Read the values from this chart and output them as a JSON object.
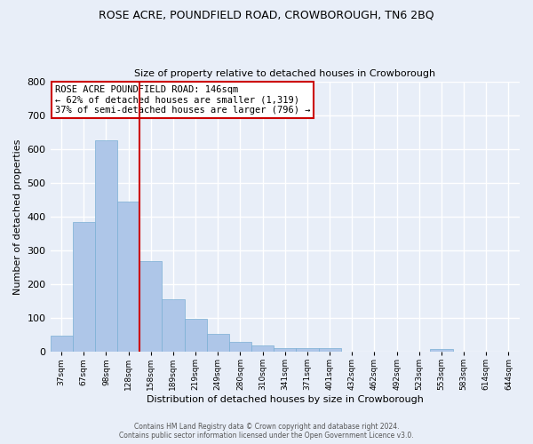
{
  "title1": "ROSE ACRE, POUNDFIELD ROAD, CROWBOROUGH, TN6 2BQ",
  "title2": "Size of property relative to detached houses in Crowborough",
  "xlabel": "Distribution of detached houses by size in Crowborough",
  "ylabel": "Number of detached properties",
  "bin_labels": [
    "37sqm",
    "67sqm",
    "98sqm",
    "128sqm",
    "158sqm",
    "189sqm",
    "219sqm",
    "249sqm",
    "280sqm",
    "310sqm",
    "341sqm",
    "371sqm",
    "401sqm",
    "432sqm",
    "462sqm",
    "492sqm",
    "523sqm",
    "553sqm",
    "583sqm",
    "614sqm",
    "644sqm"
  ],
  "bar_values": [
    48,
    385,
    625,
    445,
    268,
    155,
    98,
    52,
    30,
    18,
    10,
    10,
    12,
    0,
    0,
    0,
    0,
    8,
    0,
    0,
    0
  ],
  "bar_color": "#aec6e8",
  "bar_edge_color": "#7aafd4",
  "background_color": "#e8eef8",
  "grid_color": "#ffffff",
  "ylim": [
    0,
    800
  ],
  "yticks": [
    0,
    100,
    200,
    300,
    400,
    500,
    600,
    700,
    800
  ],
  "property_sqm": 146,
  "property_bin_index": 3,
  "red_line_color": "#cc0000",
  "annotation_title": "ROSE ACRE POUNDFIELD ROAD: 146sqm",
  "annotation_line1": "← 62% of detached houses are smaller (1,319)",
  "annotation_line2": "37% of semi-detached houses are larger (796) →",
  "annotation_box_color": "#ffffff",
  "annotation_border_color": "#cc0000",
  "footer_line1": "Contains HM Land Registry data © Crown copyright and database right 2024.",
  "footer_line2": "Contains public sector information licensed under the Open Government Licence v3.0."
}
